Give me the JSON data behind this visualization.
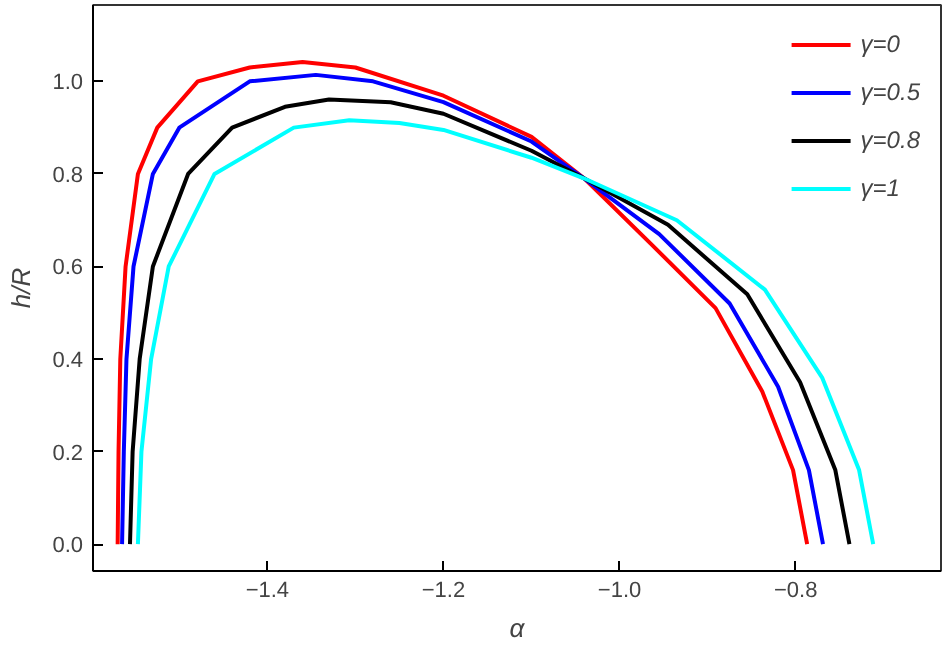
{
  "chart_data": {
    "type": "line",
    "xlabel": "α",
    "ylabel": "h/R",
    "xlim": [
      -1.598,
      -0.635
    ],
    "ylim": [
      -0.058,
      1.165
    ],
    "xticks": [
      {
        "value": -1.4,
        "label": "−1.4"
      },
      {
        "value": -1.2,
        "label": "−1.2"
      },
      {
        "value": -1.0,
        "label": "−1.0"
      },
      {
        "value": -0.8,
        "label": "−0.8"
      }
    ],
    "yticks": [
      {
        "value": 0,
        "label": "0.0"
      },
      {
        "value": 0.2,
        "label": "0.2"
      },
      {
        "value": 0.4,
        "label": "0.4"
      },
      {
        "value": 0.6,
        "label": "0.6"
      },
      {
        "value": 0.8,
        "label": "0.8"
      },
      {
        "value": 1.0,
        "label": "1.0"
      }
    ],
    "grid": false,
    "legend": "top right",
    "marker": "none",
    "line_style": "solid",
    "series": [
      {
        "name": "γ=0",
        "color": "#ff0000",
        "x": [
          -1.57,
          -1.569,
          -1.567,
          -1.561,
          -1.547,
          -1.525,
          -1.479,
          -1.42,
          -1.36,
          -1.3,
          -1.2,
          -1.1,
          -1.04,
          -0.965,
          -0.891,
          -0.838,
          -0.803,
          -0.787
        ],
        "values": [
          0,
          0.2,
          0.4,
          0.6,
          0.8,
          0.9,
          1.0,
          1.03,
          1.042,
          1.03,
          0.969,
          0.88,
          0.79,
          0.65,
          0.51,
          0.33,
          0.16,
          0
        ]
      },
      {
        "name": "γ=0.5",
        "color": "#0000ff",
        "x": [
          -1.565,
          -1.563,
          -1.56,
          -1.552,
          -1.53,
          -1.5,
          -1.42,
          -1.345,
          -1.28,
          -1.2,
          -1.1,
          -1.04,
          -0.955,
          -0.875,
          -0.82,
          -0.785,
          -0.769
        ],
        "values": [
          0,
          0.2,
          0.4,
          0.6,
          0.8,
          0.9,
          1.0,
          1.014,
          1.0,
          0.955,
          0.87,
          0.79,
          0.67,
          0.52,
          0.34,
          0.16,
          0
        ]
      },
      {
        "name": "γ=0.8",
        "color": "#000000",
        "x": [
          -1.556,
          -1.553,
          -1.545,
          -1.53,
          -1.49,
          -1.44,
          -1.38,
          -1.33,
          -1.26,
          -1.2,
          -1.1,
          -1.04,
          -0.945,
          -0.855,
          -0.795,
          -0.755,
          -0.739
        ],
        "values": [
          0,
          0.2,
          0.4,
          0.6,
          0.8,
          0.9,
          0.945,
          0.961,
          0.955,
          0.93,
          0.85,
          0.79,
          0.69,
          0.54,
          0.35,
          0.16,
          0
        ]
      },
      {
        "name": "γ=1",
        "color": "#00ffff",
        "x": [
          -1.547,
          -1.543,
          -1.532,
          -1.512,
          -1.46,
          -1.37,
          -1.307,
          -1.25,
          -1.2,
          -1.1,
          -1.04,
          -0.935,
          -0.835,
          -0.77,
          -0.728,
          -0.712
        ],
        "values": [
          0,
          0.2,
          0.4,
          0.6,
          0.8,
          0.9,
          0.916,
          0.91,
          0.895,
          0.835,
          0.79,
          0.7,
          0.55,
          0.36,
          0.16,
          0
        ]
      }
    ]
  }
}
